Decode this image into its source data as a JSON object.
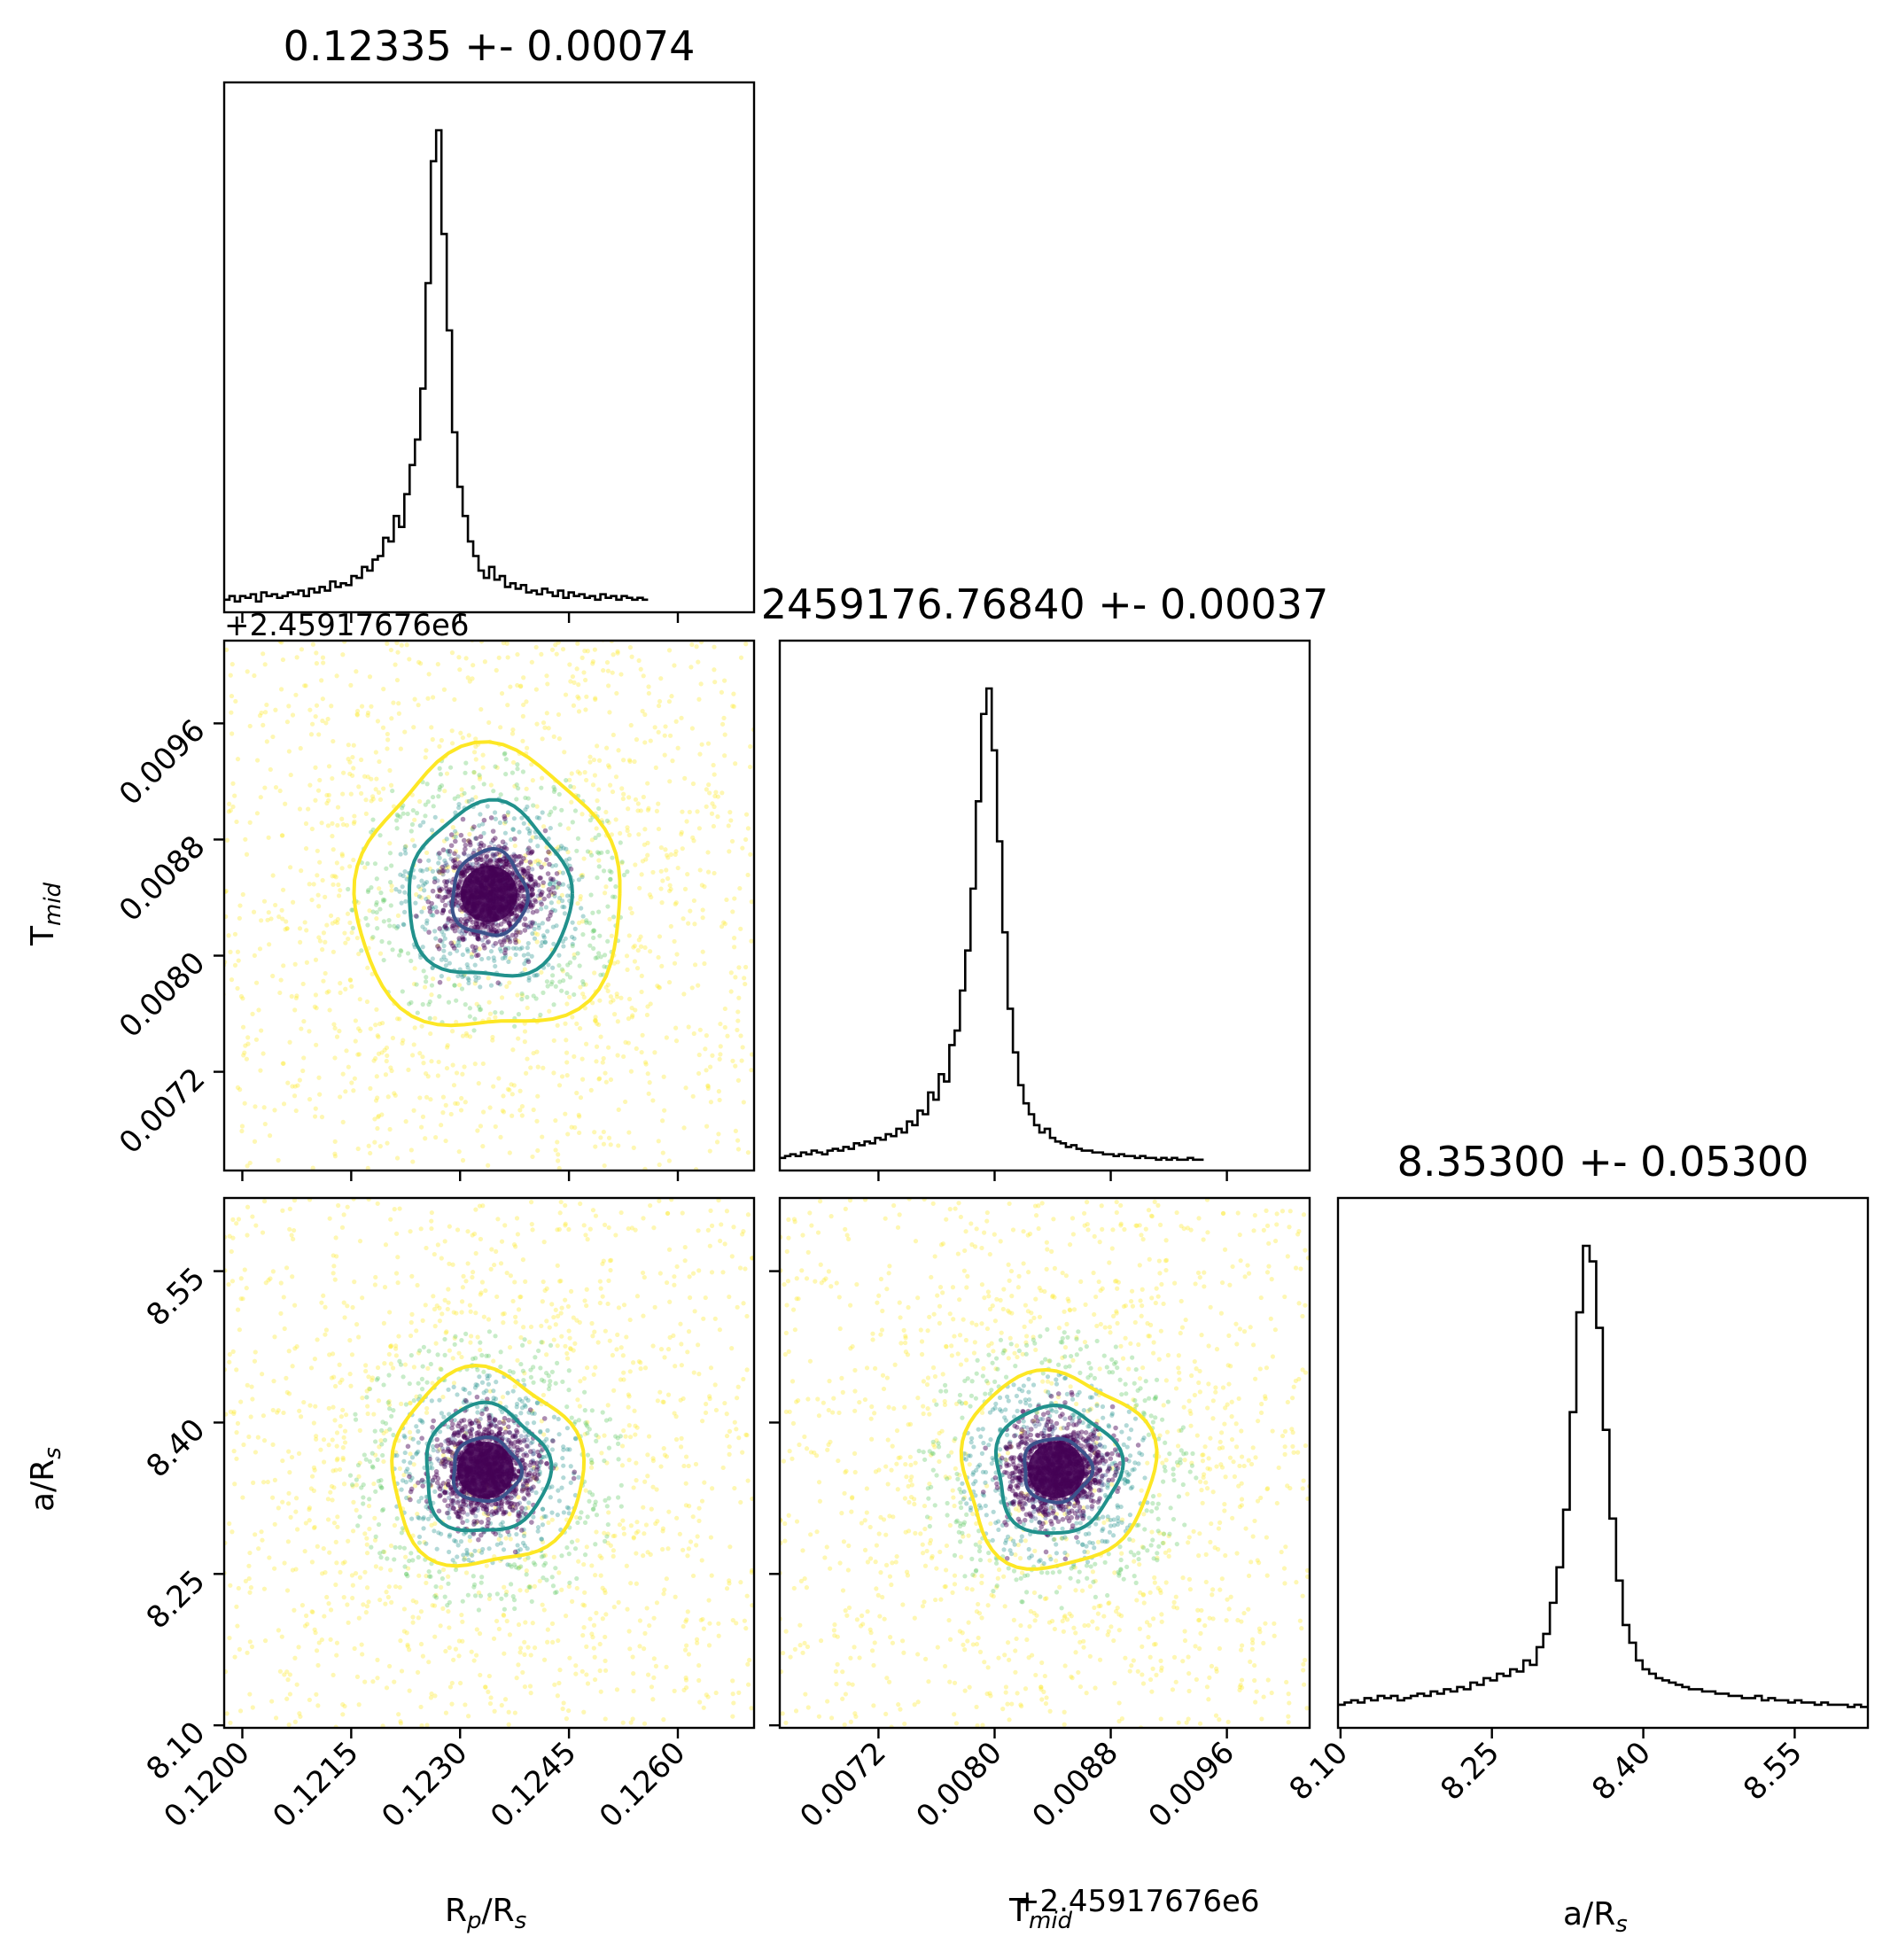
{
  "chart_data": {
    "type": "corner",
    "parameters": [
      {
        "key": "rp",
        "label_main": "R",
        "label_sub": "p",
        "label_mid": "/R",
        "label_sub2": "s",
        "title": "0.12335 +- 0.00074",
        "range": [
          0.11975,
          0.12705
        ],
        "ticks": [
          0.12,
          0.1215,
          0.123,
          0.1245,
          0.126
        ],
        "tick_labels": [
          "0.1200",
          "0.1215",
          "0.1230",
          "0.1245",
          "0.1260"
        ],
        "offset": ""
      },
      {
        "key": "tmid",
        "label_main": "T",
        "label_sub": "mid",
        "label_mid": "",
        "label_sub2": "",
        "title": "2459176.76840 +- 0.00037",
        "range": [
          0.00652,
          0.01017
        ],
        "ticks": [
          0.0072,
          0.008,
          0.0088,
          0.0096
        ],
        "tick_labels": [
          "0.0072",
          "0.0080",
          "0.0088",
          "0.0096"
        ],
        "offset": "+2.45917676e6"
      },
      {
        "key": "ars",
        "label_main": "a/R",
        "label_sub": "s",
        "label_mid": "",
        "label_sub2": "",
        "title": "8.35300 +- 0.05300",
        "range": [
          8.0975,
          8.6225
        ],
        "ticks": [
          8.1,
          8.25,
          8.4,
          8.55
        ],
        "tick_labels": [
          "8.10",
          "8.25",
          "8.40",
          "8.55"
        ],
        "offset": ""
      }
    ],
    "diagonal_histograms": [
      {
        "param": "rp",
        "bin_start": 0.11975,
        "bin_width": 7.3e-05,
        "counts": [
          4,
          6,
          3,
          6,
          5,
          7,
          3,
          8,
          6,
          7,
          5,
          6,
          8,
          7,
          9,
          6,
          10,
          8,
          11,
          9,
          14,
          11,
          13,
          12,
          17,
          16,
          22,
          20,
          26,
          28,
          38,
          36,
          50,
          44,
          62,
          78,
          92,
          120,
          178,
          245,
          262,
          205,
          152,
          96,
          66,
          50,
          36,
          28,
          20,
          16,
          22,
          15,
          17,
          11,
          13,
          10,
          12,
          8,
          9,
          7,
          10,
          8,
          6,
          9,
          5,
          8,
          6,
          7,
          5,
          6,
          4,
          7,
          5,
          6,
          4,
          6,
          5,
          4,
          5,
          4
        ]
      },
      {
        "param": "tmid",
        "bin_start": 0.00652,
        "bin_width": 3.65e-05,
        "counts": [
          4,
          5,
          6,
          5,
          7,
          6,
          8,
          7,
          6,
          8,
          9,
          8,
          10,
          9,
          12,
          11,
          13,
          12,
          15,
          14,
          17,
          16,
          20,
          18,
          24,
          22,
          30,
          28,
          40,
          36,
          50,
          46,
          66,
          74,
          96,
          118,
          152,
          200,
          248,
          262,
          228,
          178,
          128,
          86,
          62,
          44,
          34,
          28,
          22,
          18,
          20,
          15,
          13,
          12,
          10,
          11,
          9,
          8,
          8,
          7,
          7,
          6,
          6,
          5,
          6,
          5,
          5,
          4,
          5,
          4,
          4,
          3,
          4,
          3,
          4,
          3,
          3,
          4,
          3,
          3
        ]
      },
      {
        "param": "ars",
        "bin_start": 8.0975,
        "bin_width": 0.00656,
        "counts": [
          8,
          9,
          10,
          9,
          11,
          10,
          12,
          11,
          12,
          10,
          11,
          12,
          13,
          12,
          14,
          13,
          15,
          14,
          16,
          15,
          18,
          17,
          20,
          19,
          22,
          21,
          24,
          23,
          28,
          26,
          34,
          40,
          54,
          70,
          96,
          140,
          185,
          215,
          208,
          178,
          132,
          92,
          64,
          44,
          36,
          28,
          24,
          22,
          20,
          19,
          18,
          17,
          16,
          15,
          15,
          14,
          14,
          13,
          13,
          12,
          12,
          11,
          11,
          12,
          10,
          11,
          10,
          10,
          9,
          10,
          9,
          9,
          8,
          9,
          8,
          8,
          8,
          7,
          8,
          7
        ]
      }
    ],
    "scatter_panels": [
      {
        "x": "rp",
        "y": "tmid",
        "center": [
          0.1234,
          0.008425
        ],
        "contours": 3
      },
      {
        "x": "rp",
        "y": "ars",
        "center": [
          0.12335,
          8.353
        ],
        "contours": 3
      },
      {
        "x": "tmid",
        "y": "ars",
        "center": [
          0.008425,
          8.353
        ],
        "contours": 3
      }
    ],
    "contour_colors": [
      "#3b528b",
      "#21918c",
      "#fde725"
    ],
    "point_colors": [
      "#440154",
      "#3b528b",
      "#21918c",
      "#5ec962",
      "#fde725"
    ],
    "grid": false
  }
}
